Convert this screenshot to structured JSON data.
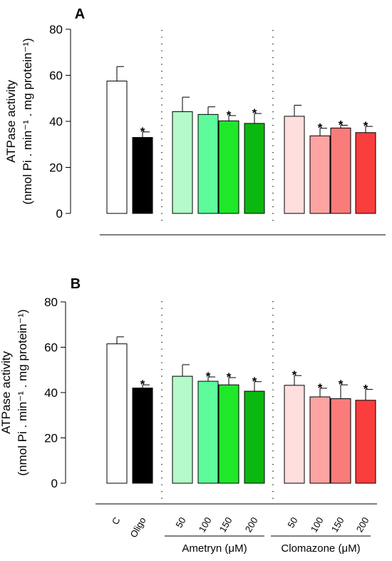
{
  "chart_data": [
    {
      "panel": "A",
      "type": "bar",
      "ylabel_line1": "ATPase activity",
      "ylabel_line2": "(nmol Pi . min⁻¹ . mg protein⁻¹)",
      "ylim": [
        0,
        80
      ],
      "yticks": [
        0,
        20,
        40,
        60,
        80
      ],
      "categories": [
        "C",
        "Oligo",
        "50",
        "100",
        "150",
        "200",
        "50",
        "100",
        "150",
        "200"
      ],
      "values": [
        57.5,
        33,
        44.2,
        43,
        40.2,
        39.1,
        42.2,
        33.7,
        37.1,
        35.1
      ],
      "errors": [
        6.3,
        2.4,
        6.3,
        3.3,
        2.3,
        4.3,
        4.8,
        3.3,
        1.2,
        2.7
      ],
      "significant": [
        false,
        true,
        false,
        false,
        true,
        true,
        false,
        true,
        true,
        true
      ],
      "colors": [
        "#ffffff",
        "#000000",
        "#b3fbc8",
        "#5dfb9b",
        "#1fe829",
        "#0bb80f",
        "#ffdede",
        "#fba4a2",
        "#f97b7a",
        "#fa3d3d"
      ]
    },
    {
      "panel": "B",
      "type": "bar",
      "ylabel_line1": "ATPase activity",
      "ylabel_line2": "(nmol Pi . min⁻¹ . mg protein⁻¹)",
      "ylim": [
        0,
        80
      ],
      "yticks": [
        0,
        20,
        40,
        60,
        80
      ],
      "categories": [
        "C",
        "Oligo",
        "50",
        "100",
        "150",
        "200",
        "50",
        "100",
        "150",
        "200"
      ],
      "values": [
        61.5,
        42,
        47.2,
        45,
        43.4,
        40.6,
        43.2,
        38.1,
        37.3,
        36.6
      ],
      "errors": [
        3.1,
        1.4,
        5.1,
        1.9,
        3.2,
        4.2,
        4.3,
        3.8,
        6.1,
        4.8
      ],
      "significant": [
        false,
        true,
        false,
        true,
        true,
        true,
        true,
        true,
        true,
        true
      ],
      "colors": [
        "#ffffff",
        "#000000",
        "#b3fbc8",
        "#5dfb9b",
        "#1fe829",
        "#0bb80f",
        "#ffdede",
        "#fba4a2",
        "#f97b7a",
        "#fa3d3d"
      ]
    }
  ],
  "groups": {
    "ametryn": "Ametryn (μM)",
    "clomazone": "Clomazone (μM)"
  },
  "significance_marker": "*"
}
